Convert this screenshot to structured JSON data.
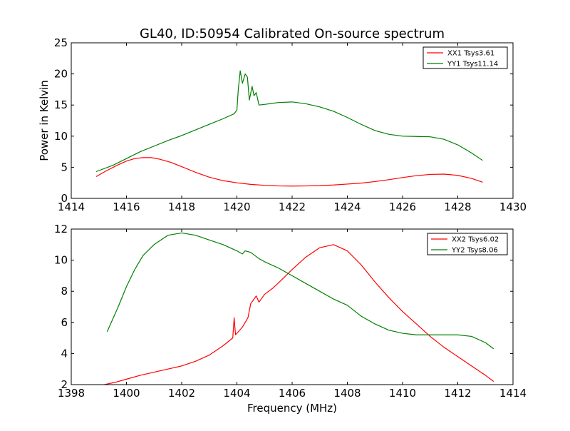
{
  "figure": {
    "title": "GL40, ID:50954 Calibrated On-source spectrum",
    "ylabel": "Power in Kelvin",
    "xlabel": "Frequency (MHz)"
  },
  "chart_data": [
    {
      "type": "line",
      "title": "GL40, ID:50954 Calibrated On-source spectrum",
      "xlabel": "",
      "ylabel": "Power in Kelvin",
      "xlim": [
        1414,
        1430
      ],
      "ylim": [
        0,
        25
      ],
      "xticks": [
        "1414",
        "1416",
        "1418",
        "1420",
        "1422",
        "1424",
        "1426",
        "1428",
        "1430"
      ],
      "yticks": [
        "0",
        "5",
        "10",
        "15",
        "20",
        "25"
      ],
      "grid": false,
      "legend": "top-right",
      "series": [
        {
          "name": "XX1 Tsys3.61",
          "color": "#ff0000",
          "x": [
            1414.9,
            1415.3,
            1415.7,
            1416.0,
            1416.3,
            1416.6,
            1416.9,
            1417.2,
            1417.6,
            1418.0,
            1418.5,
            1419.0,
            1419.5,
            1420.0,
            1420.5,
            1421.0,
            1421.5,
            1422.0,
            1422.5,
            1423.0,
            1423.5,
            1424.0,
            1424.5,
            1425.0,
            1425.5,
            1426.0,
            1426.5,
            1427.0,
            1427.5,
            1428.0,
            1428.5,
            1428.9
          ],
          "y": [
            3.5,
            4.5,
            5.4,
            6.0,
            6.4,
            6.55,
            6.55,
            6.3,
            5.8,
            5.1,
            4.2,
            3.4,
            2.85,
            2.5,
            2.25,
            2.1,
            2.0,
            1.98,
            2.0,
            2.05,
            2.15,
            2.3,
            2.45,
            2.7,
            3.0,
            3.35,
            3.65,
            3.85,
            3.9,
            3.7,
            3.2,
            2.6
          ]
        },
        {
          "name": "YY1 Tsys11.14",
          "color": "#008000",
          "x": [
            1414.9,
            1415.5,
            1416.0,
            1416.5,
            1417.0,
            1417.5,
            1418.0,
            1418.5,
            1419.0,
            1419.5,
            1419.9,
            1420.0,
            1420.05,
            1420.12,
            1420.2,
            1420.3,
            1420.38,
            1420.45,
            1420.55,
            1420.62,
            1420.7,
            1420.8,
            1421.0,
            1421.5,
            1422.0,
            1422.5,
            1423.0,
            1423.5,
            1424.0,
            1424.5,
            1425.0,
            1425.5,
            1426.0,
            1426.5,
            1427.0,
            1427.5,
            1428.0,
            1428.5,
            1428.9
          ],
          "y": [
            4.3,
            5.3,
            6.4,
            7.5,
            8.4,
            9.3,
            10.1,
            11.0,
            11.9,
            12.8,
            13.6,
            14.2,
            17.5,
            20.5,
            18.5,
            20.0,
            19.5,
            15.8,
            18.0,
            16.5,
            17.0,
            15.0,
            15.1,
            15.4,
            15.5,
            15.2,
            14.7,
            14.0,
            13.0,
            11.9,
            10.9,
            10.3,
            10.0,
            9.95,
            9.9,
            9.5,
            8.6,
            7.3,
            6.1
          ]
        }
      ]
    },
    {
      "type": "line",
      "title": "",
      "xlabel": "Frequency (MHz)",
      "ylabel": "",
      "xlim": [
        1398,
        1414
      ],
      "ylim": [
        2,
        12
      ],
      "xticks": [
        "1398",
        "1400",
        "1402",
        "1404",
        "1406",
        "1408",
        "1410",
        "1412",
        "1414"
      ],
      "yticks": [
        "2",
        "4",
        "6",
        "8",
        "10",
        "12"
      ],
      "grid": false,
      "legend": "top-right",
      "series": [
        {
          "name": "XX2 Tsys6.02",
          "color": "#ff0000",
          "x": [
            1399.2,
            1399.6,
            1400.0,
            1400.5,
            1401.0,
            1401.5,
            1402.0,
            1402.5,
            1403.0,
            1403.5,
            1403.85,
            1403.9,
            1403.95,
            1404.2,
            1404.4,
            1404.5,
            1404.7,
            1404.8,
            1405.0,
            1405.3,
            1405.6,
            1406.0,
            1406.5,
            1407.0,
            1407.5,
            1408.0,
            1408.5,
            1409.0,
            1409.5,
            1410.0,
            1410.5,
            1411.0,
            1411.5,
            1412.0,
            1412.5,
            1413.0,
            1413.3
          ],
          "y": [
            2.0,
            2.15,
            2.35,
            2.6,
            2.8,
            3.0,
            3.2,
            3.5,
            3.9,
            4.5,
            5.0,
            6.3,
            5.2,
            5.7,
            6.3,
            7.2,
            7.7,
            7.3,
            7.8,
            8.2,
            8.7,
            9.4,
            10.2,
            10.8,
            11.0,
            10.6,
            9.7,
            8.6,
            7.6,
            6.7,
            5.9,
            5.1,
            4.4,
            3.8,
            3.2,
            2.6,
            2.2
          ]
        },
        {
          "name": "YY2 Tsys8.06",
          "color": "#008000",
          "x": [
            1399.3,
            1399.7,
            1400.0,
            1400.3,
            1400.6,
            1401.0,
            1401.5,
            1402.0,
            1402.5,
            1403.0,
            1403.5,
            1404.0,
            1404.2,
            1404.3,
            1404.5,
            1404.8,
            1405.0,
            1405.5,
            1406.0,
            1406.5,
            1407.0,
            1407.5,
            1408.0,
            1408.5,
            1409.0,
            1409.5,
            1410.0,
            1410.5,
            1411.0,
            1411.5,
            1412.0,
            1412.5,
            1413.0,
            1413.3
          ],
          "y": [
            5.4,
            7.0,
            8.3,
            9.4,
            10.3,
            11.0,
            11.6,
            11.75,
            11.6,
            11.3,
            11.0,
            10.6,
            10.4,
            10.6,
            10.5,
            10.1,
            9.9,
            9.5,
            9.0,
            8.5,
            8.0,
            7.5,
            7.1,
            6.4,
            5.9,
            5.5,
            5.3,
            5.2,
            5.2,
            5.2,
            5.2,
            5.1,
            4.7,
            4.3
          ]
        }
      ]
    }
  ]
}
